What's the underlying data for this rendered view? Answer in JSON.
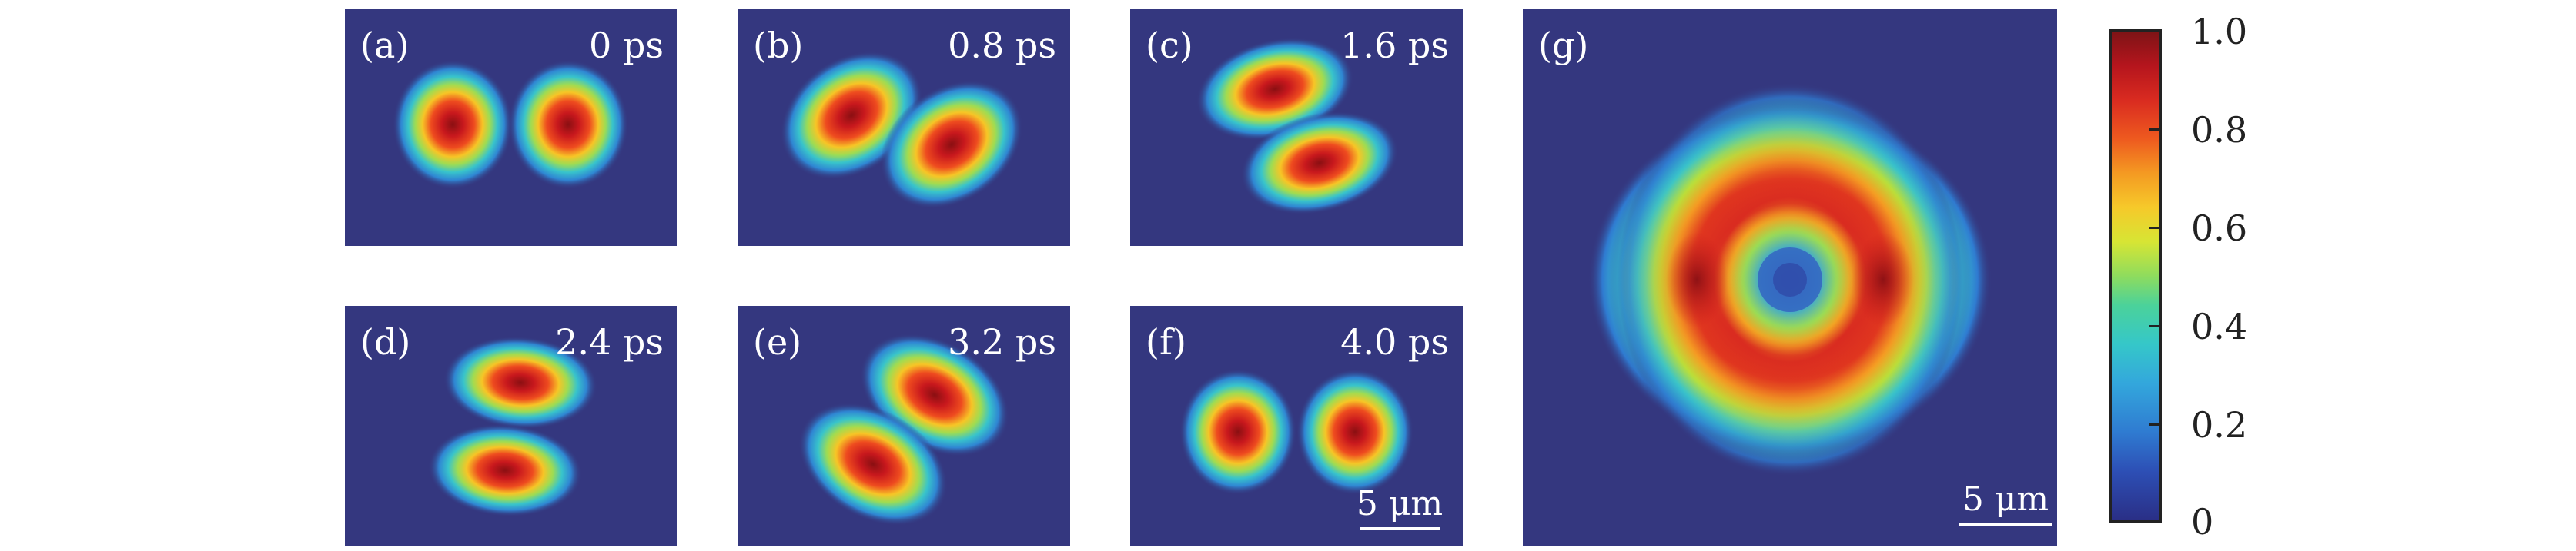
{
  "panels": [
    {
      "label": "(a)",
      "time": "0 ps"
    },
    {
      "label": "(b)",
      "time": "0.8 ps"
    },
    {
      "label": "(c)",
      "time": "1.6 ps"
    },
    {
      "label": "(d)",
      "time": "2.4 ps"
    },
    {
      "label": "(e)",
      "time": "3.2 ps"
    },
    {
      "label": "(f)",
      "time": "4.0 ps",
      "scale": "5 μm"
    },
    {
      "label": "(g)",
      "scale": "5 μm"
    }
  ],
  "colorbar": {
    "ticks": [
      "1.0",
      "0.8",
      "0.6",
      "0.4",
      "0.2",
      "0"
    ],
    "colormap": "jet"
  }
}
